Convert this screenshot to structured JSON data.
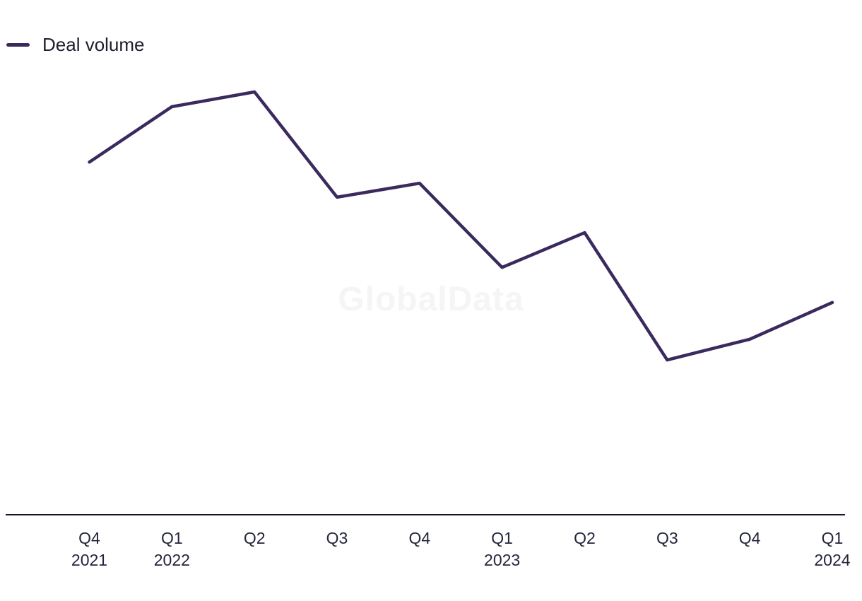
{
  "chart_data": {
    "type": "line",
    "title": "",
    "legend": {
      "label": "Deal volume",
      "position": "top-left"
    },
    "watermark": "GlobalData",
    "x_ticks": [
      {
        "quarter": "Q4",
        "year": "2021"
      },
      {
        "quarter": "Q1",
        "year": "2022"
      },
      {
        "quarter": "Q2",
        "year": ""
      },
      {
        "quarter": "Q3",
        "year": ""
      },
      {
        "quarter": "Q4",
        "year": ""
      },
      {
        "quarter": "Q1",
        "year": "2023"
      },
      {
        "quarter": "Q2",
        "year": ""
      },
      {
        "quarter": "Q3",
        "year": ""
      },
      {
        "quarter": "Q4",
        "year": ""
      },
      {
        "quarter": "Q1",
        "year": "2024"
      }
    ],
    "series": [
      {
        "name": "Deal volume",
        "values": [
          83.4,
          96.5,
          100,
          75.1,
          78.4,
          58.5,
          66.7,
          36.6,
          41.5,
          50.2
        ]
      }
    ],
    "ylim": [
      0,
      100
    ],
    "value_scale_note": "relative scale estimated from pixels; no y-axis shown in chart",
    "y_axis_visible": false,
    "grid": false,
    "colors": {
      "line": "#3b2a5e",
      "axis": "#14162a",
      "tick_text": "#23253b",
      "legend_text": "#1c1e2e",
      "watermark": "#f5f5f5"
    }
  }
}
